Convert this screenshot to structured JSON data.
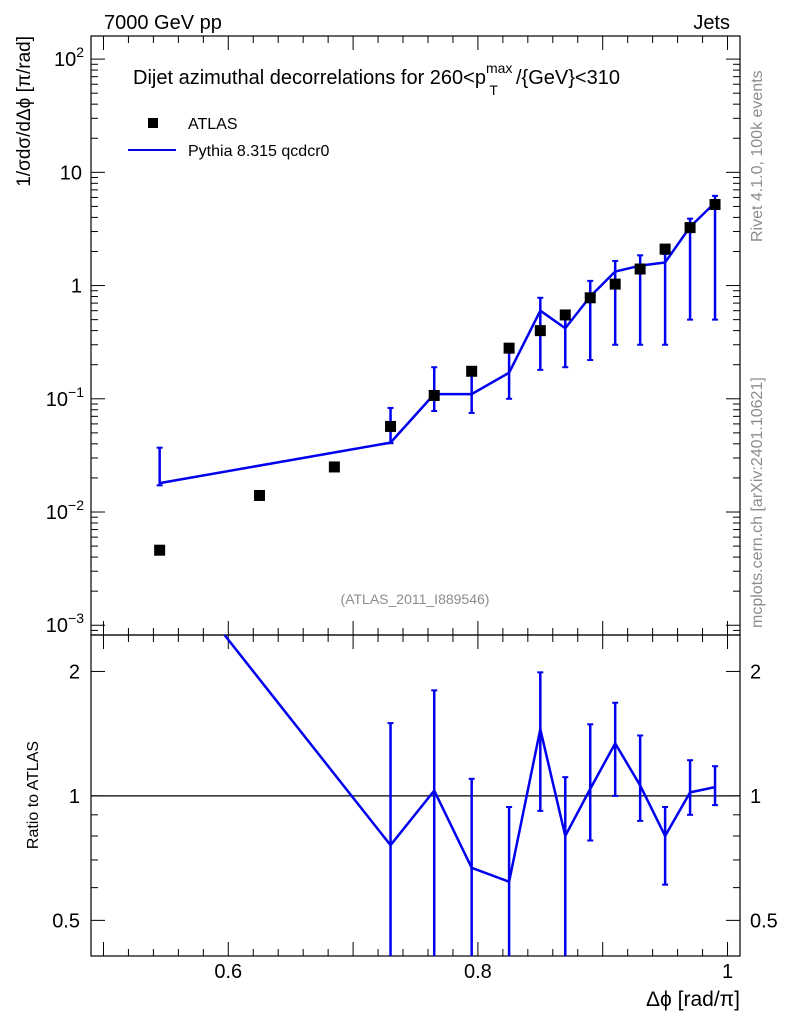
{
  "header": {
    "left": "7000 GeV pp",
    "right": "Jets"
  },
  "side_labels": {
    "rivet": "Rivet 4.1.0,  100k events",
    "mcplots": "mcplots.cern.ch [arXiv:2401.10621]"
  },
  "watermark": "(ATLAS_2011_I889546)",
  "chart_data": [
    {
      "panel": "main",
      "type": "scatter",
      "title": {
        "prefix": "Dijet azimuthal decorrelations for 260<p",
        "sup": "max",
        "sub": "T",
        "suffix": "/{GeV}<310"
      },
      "ylabel": "1/σdσ/dΔϕ [π/rad]",
      "yscale": "log",
      "ylim": [
        0.00082,
        160
      ],
      "xlim": [
        0.49,
        1.01
      ],
      "ytick_labels": [
        {
          "value": 100,
          "base": "10",
          "exp": "2"
        },
        {
          "value": 10,
          "text": "10"
        },
        {
          "value": 1,
          "text": "1"
        },
        {
          "value": 0.1,
          "base": "10",
          "exp": "−1"
        },
        {
          "value": 0.01,
          "base": "10",
          "exp": "−2"
        },
        {
          "value": 0.001,
          "base": "10",
          "exp": "−3"
        }
      ],
      "legend": [
        {
          "name": "ATLAS",
          "style": "marker"
        },
        {
          "name": "Pythia 8.315 qcdcr0",
          "style": "line",
          "color": "#0000ee"
        }
      ],
      "series": [
        {
          "name": "ATLAS",
          "color": "#000000",
          "x": [
            0.545,
            0.625,
            0.685,
            0.73,
            0.765,
            0.795,
            0.825,
            0.85,
            0.87,
            0.89,
            0.91,
            0.93,
            0.95,
            0.97,
            0.99
          ],
          "y": [
            0.0046,
            0.014,
            0.025,
            0.057,
            0.107,
            0.175,
            0.28,
            0.4,
            0.55,
            0.78,
            1.03,
            1.4,
            2.1,
            3.25,
            5.2
          ]
        },
        {
          "name": "Pythia 8.315 qcdcr0",
          "color": "#0000ee",
          "x": [
            0.545,
            0.73,
            0.765,
            0.795,
            0.825,
            0.85,
            0.87,
            0.89,
            0.91,
            0.93,
            0.95,
            0.97,
            0.99
          ],
          "y": [
            0.018,
            0.041,
            0.11,
            0.11,
            0.17,
            0.6,
            0.42,
            0.8,
            1.33,
            1.5,
            1.6,
            3.3,
            5.4
          ],
          "err_low": [
            0.0172,
            0.0405,
            0.078,
            0.075,
            0.1,
            0.18,
            0.19,
            0.22,
            0.3,
            0.3,
            0.3,
            0.5,
            0.5
          ],
          "err_high": [
            0.037,
            0.083,
            0.19,
            0.175,
            0.28,
            0.78,
            0.6,
            1.1,
            1.65,
            1.85,
            1.9,
            3.9,
            6.2
          ]
        }
      ]
    },
    {
      "panel": "ratio",
      "type": "line",
      "ylabel": "Ratio to ATLAS",
      "xlabel": "Δϕ [rad/π]",
      "yscale": "log",
      "ylim": [
        0.41,
        2.45
      ],
      "xlim": [
        0.49,
        1.01
      ],
      "reference_line": 1,
      "ytick_labels": [
        {
          "value": 2,
          "text": "2"
        },
        {
          "value": 1,
          "text": "1"
        },
        {
          "value": 0.5,
          "text": "0.5"
        }
      ],
      "xtick_labels": [
        {
          "value": 0.6,
          "text": "0.6"
        },
        {
          "value": 0.8,
          "text": "0.8"
        },
        {
          "value": 1.0,
          "text": "1"
        }
      ],
      "series": [
        {
          "name": "Pythia 8.315 qcdcr0 / ATLAS",
          "color": "#0000ee",
          "x": [
            0.597,
            0.73,
            0.765,
            0.795,
            0.825,
            0.85,
            0.87,
            0.89,
            0.91,
            0.93,
            0.95,
            0.97,
            0.99
          ],
          "y": [
            2.45,
            0.76,
            1.03,
            0.67,
            0.62,
            1.45,
            0.8,
            1.04,
            1.34,
            1.06,
            0.8,
            1.02,
            1.05
          ],
          "err_low": [
            null,
            0.41,
            0.41,
            0.41,
            0.41,
            0.92,
            0.38,
            0.78,
            1.0,
            0.87,
            0.61,
            0.9,
            0.95
          ],
          "err_high": [
            null,
            1.5,
            1.8,
            1.1,
            0.94,
            1.99,
            1.11,
            1.49,
            1.68,
            1.4,
            0.94,
            1.22,
            1.18
          ]
        }
      ]
    }
  ]
}
